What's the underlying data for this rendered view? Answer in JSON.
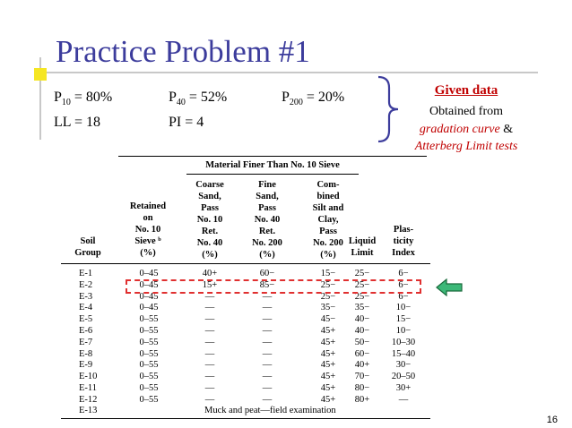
{
  "slide": {
    "title": "Practice Problem #1",
    "page_number": "16"
  },
  "params": {
    "p10_symbol": "P",
    "p10_sub": "10",
    "p10_value": " = 80%",
    "p40_symbol": "P",
    "p40_sub": "40",
    "p40_value": " = 52%",
    "p200_symbol": "P",
    "p200_sub": "200",
    "p200_value": " = 20%",
    "ll": "LL = 18",
    "pi": "PI = 4"
  },
  "given": {
    "title": "Given data",
    "line1": "Obtained from",
    "line2_italic": "gradation curve",
    "line2_rest": " &",
    "line3_italic": "Atterberg Limit tests"
  },
  "table": {
    "group_header": "Material Finer Than No. 10 Sieve",
    "col_soil": [
      "Soil",
      "Group"
    ],
    "col_retained": [
      "Retained",
      "on",
      "No. 10",
      "Sieve ᵇ",
      "(%)"
    ],
    "col_coarse": [
      "Coarse",
      "Sand,",
      "Pass",
      "No. 10",
      "Ret.",
      "No. 40",
      "(%)"
    ],
    "col_fine": [
      "Fine",
      "Sand,",
      "Pass",
      "No. 40",
      "Ret.",
      "No. 200",
      "(%)"
    ],
    "col_combined": [
      "Com-",
      "bined",
      "Silt and",
      "Clay,",
      "Pass",
      "No. 200",
      "(%)"
    ],
    "col_ll": [
      "Liquid",
      "Limit"
    ],
    "col_pi": [
      "Plas-",
      "ticity",
      "Index"
    ],
    "rows": [
      [
        "E-1",
        "0–45",
        "40+",
        "60−",
        "15−",
        "25−",
        "6−"
      ],
      [
        "E-2",
        "0–45",
        "15+",
        "85−",
        "25−",
        "25−",
        "6−"
      ],
      [
        "E-3",
        "0–45",
        "—",
        "—",
        "25−",
        "25−",
        "6−"
      ],
      [
        "E-4",
        "0–45",
        "—",
        "—",
        "35−",
        "35−",
        "10−"
      ],
      [
        "E-5",
        "0–55",
        "—",
        "—",
        "45−",
        "40−",
        "15−"
      ],
      [
        "E-6",
        "0–55",
        "—",
        "—",
        "45+",
        "40−",
        "10−"
      ],
      [
        "E-7",
        "0–55",
        "—",
        "—",
        "45+",
        "50−",
        "10–30"
      ],
      [
        "E-8",
        "0–55",
        "—",
        "—",
        "45+",
        "60−",
        "15–40"
      ],
      [
        "E-9",
        "0–55",
        "—",
        "—",
        "45+",
        "40+",
        "30−"
      ],
      [
        "E-10",
        "0–55",
        "—",
        "—",
        "45+",
        "70−",
        "20–50"
      ],
      [
        "E-11",
        "0–55",
        "—",
        "—",
        "45+",
        "80−",
        "30+"
      ],
      [
        "E-12",
        "0–55",
        "—",
        "—",
        "45+",
        "80+",
        "—"
      ]
    ],
    "last_row_label": "E-13",
    "last_row_text": "Muck and peat—field examination"
  }
}
